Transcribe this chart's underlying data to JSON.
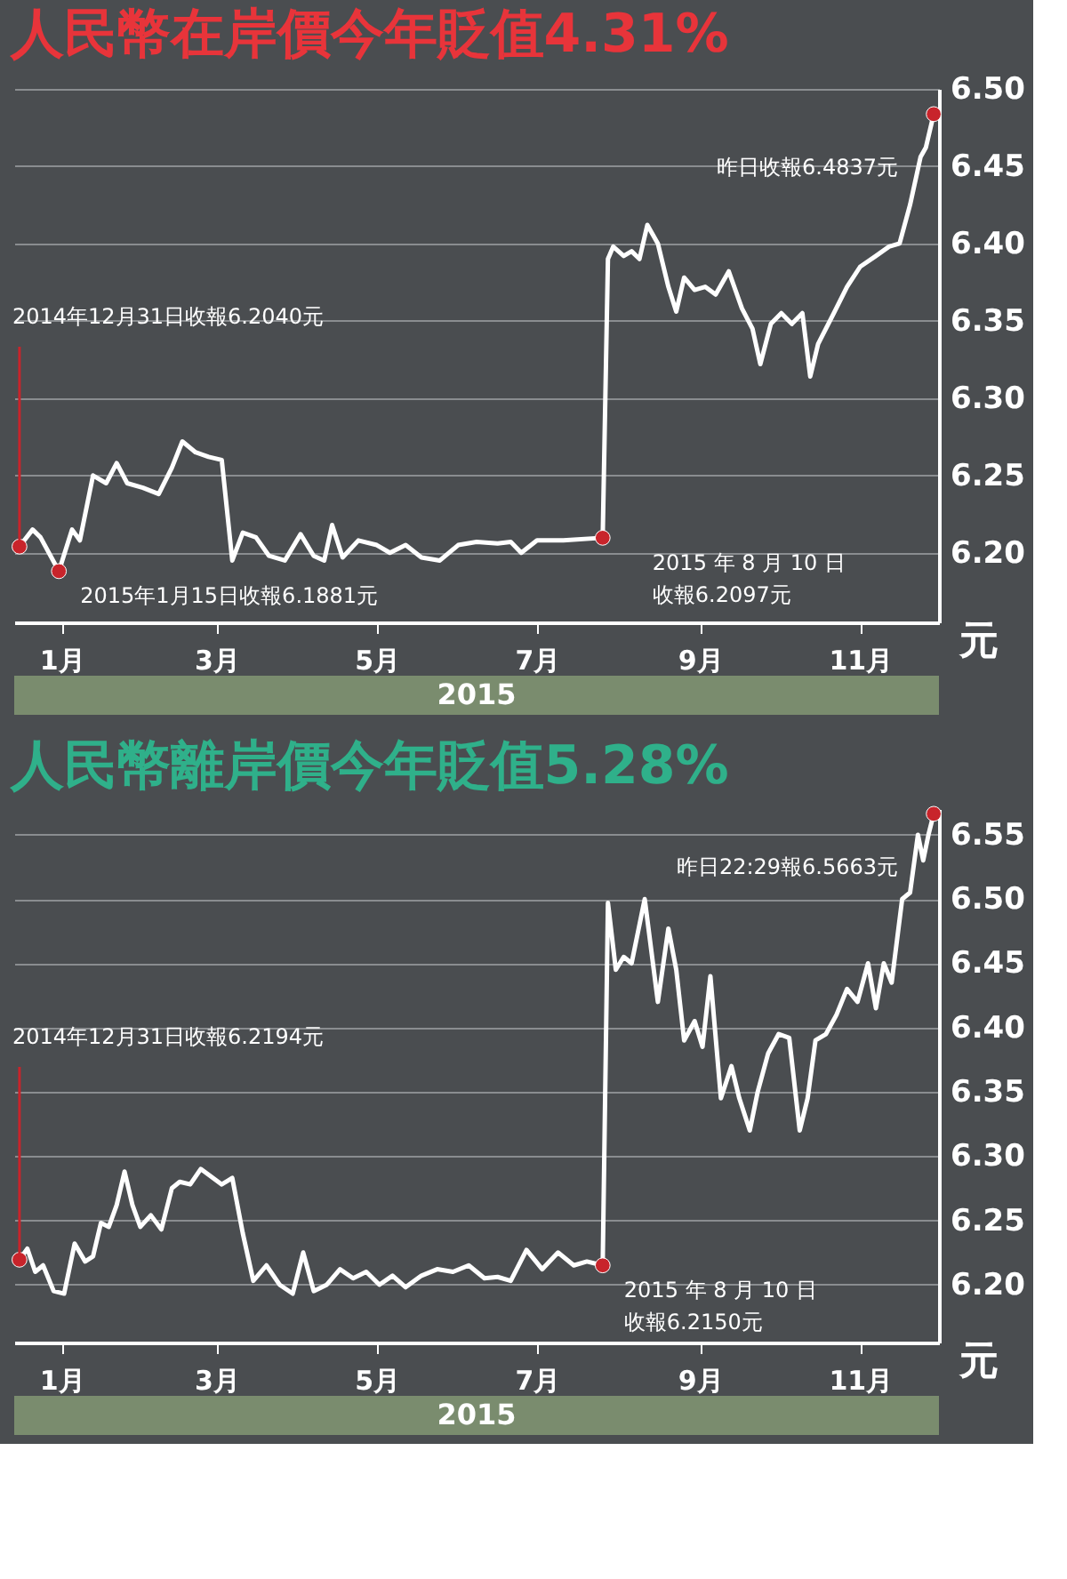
{
  "chart_data": [
    {
      "type": "line",
      "title": "人民幣在岸價今年貶值4.31%",
      "xlabel": "2015",
      "ylabel": "元",
      "color": "#ffffff",
      "line_style": "solid",
      "marker": "none",
      "grid": "y",
      "legend": false,
      "xlim": [
        "2014-12-29",
        "2015-12-16"
      ],
      "ylim": [
        6.155,
        6.5
      ],
      "xticks": [
        {
          "value": "2015-01-16",
          "label": "1月"
        },
        {
          "value": "2015-03-16",
          "label": "3月"
        },
        {
          "value": "2015-05-16",
          "label": "5月"
        },
        {
          "value": "2015-07-16",
          "label": "7月"
        },
        {
          "value": "2015-09-16",
          "label": "9月"
        },
        {
          "value": "2015-11-16",
          "label": "11月"
        }
      ],
      "yticks": [
        {
          "value": 6.2,
          "label": "6.20"
        },
        {
          "value": 6.25,
          "label": "6.25"
        },
        {
          "value": 6.3,
          "label": "6.30"
        },
        {
          "value": 6.35,
          "label": "6.35"
        },
        {
          "value": 6.4,
          "label": "6.40"
        },
        {
          "value": 6.45,
          "label": "6.45"
        },
        {
          "value": 6.5,
          "label": "6.50"
        }
      ],
      "x": [
        "2014-12-31",
        "2015-01-05",
        "2015-01-08",
        "2015-01-15",
        "2015-01-20",
        "2015-01-23",
        "2015-01-28",
        "2015-02-02",
        "2015-02-06",
        "2015-02-10",
        "2015-02-16",
        "2015-02-22",
        "2015-02-27",
        "2015-03-03",
        "2015-03-08",
        "2015-03-13",
        "2015-03-18",
        "2015-03-22",
        "2015-03-26",
        "2015-03-31",
        "2015-04-05",
        "2015-04-11",
        "2015-04-17",
        "2015-04-22",
        "2015-04-26",
        "2015-04-29",
        "2015-05-03",
        "2015-05-09",
        "2015-05-16",
        "2015-05-21",
        "2015-05-27",
        "2015-06-02",
        "2015-06-09",
        "2015-06-16",
        "2015-06-23",
        "2015-07-01",
        "2015-07-06",
        "2015-07-10",
        "2015-07-16",
        "2015-07-26",
        "2015-08-10",
        "2015-08-12",
        "2015-08-14",
        "2015-08-18",
        "2015-08-21",
        "2015-08-24",
        "2015-08-27",
        "2015-08-31",
        "2015-09-04",
        "2015-09-07",
        "2015-09-10",
        "2015-09-14",
        "2015-09-18",
        "2015-09-22",
        "2015-09-27",
        "2015-10-02",
        "2015-10-06",
        "2015-10-09",
        "2015-10-13",
        "2015-10-17",
        "2015-10-21",
        "2015-10-25",
        "2015-10-28",
        "2015-10-31",
        "2015-11-06",
        "2015-11-11",
        "2015-11-16",
        "2015-11-22",
        "2015-11-27",
        "2015-12-01",
        "2015-12-05",
        "2015-12-09",
        "2015-12-11",
        "2015-12-14"
      ],
      "values": [
        6.204,
        6.215,
        6.21,
        6.1881,
        6.215,
        6.208,
        6.25,
        6.245,
        6.258,
        6.245,
        6.242,
        6.238,
        6.255,
        6.272,
        6.265,
        6.262,
        6.26,
        6.195,
        6.213,
        6.21,
        6.198,
        6.195,
        6.212,
        6.198,
        6.195,
        6.218,
        6.197,
        6.208,
        6.205,
        6.2,
        6.205,
        6.197,
        6.195,
        6.205,
        6.207,
        6.206,
        6.207,
        6.2,
        6.208,
        6.208,
        6.2097,
        6.39,
        6.398,
        6.392,
        6.395,
        6.39,
        6.412,
        6.4,
        6.372,
        6.356,
        6.378,
        6.37,
        6.372,
        6.367,
        6.382,
        6.358,
        6.345,
        6.322,
        6.348,
        6.355,
        6.348,
        6.355,
        6.314,
        6.335,
        6.355,
        6.372,
        6.385,
        6.392,
        6.398,
        6.4,
        6.425,
        6.456,
        6.462,
        6.4837
      ],
      "annotations": [
        {
          "text": "2014年12月31日收報6.2040元",
          "x": "2014-12-31",
          "y": 6.204
        },
        {
          "text": "2015年1月15日收報6.1881元",
          "x": "2015-01-15",
          "y": 6.1881
        },
        {
          "text": "2015 年 8 月 10 日收報6.2097元",
          "x": "2015-08-10",
          "y": 6.2097
        },
        {
          "text": "昨日收報6.4837元",
          "x": "2015-12-14",
          "y": 6.4837
        }
      ]
    },
    {
      "type": "line",
      "title": "人民幣離岸價今年貶值5.28%",
      "xlabel": "2015",
      "ylabel": "元",
      "color": "#ffffff",
      "line_style": "solid",
      "marker": "none",
      "grid": "y",
      "legend": false,
      "xlim": [
        "2014-12-29",
        "2015-12-16"
      ],
      "ylim": [
        6.155,
        6.57
      ],
      "xticks": [
        {
          "value": "2015-01-16",
          "label": "1月"
        },
        {
          "value": "2015-03-16",
          "label": "3月"
        },
        {
          "value": "2015-05-16",
          "label": "5月"
        },
        {
          "value": "2015-07-16",
          "label": "7月"
        },
        {
          "value": "2015-09-16",
          "label": "9月"
        },
        {
          "value": "2015-11-16",
          "label": "11月"
        }
      ],
      "yticks": [
        {
          "value": 6.2,
          "label": "6.20"
        },
        {
          "value": 6.25,
          "label": "6.25"
        },
        {
          "value": 6.3,
          "label": "6.30"
        },
        {
          "value": 6.35,
          "label": "6.35"
        },
        {
          "value": 6.4,
          "label": "6.40"
        },
        {
          "value": 6.45,
          "label": "6.45"
        },
        {
          "value": 6.5,
          "label": "6.50"
        },
        {
          "value": 6.55,
          "label": "6.55"
        }
      ],
      "x": [
        "2014-12-31",
        "2015-01-03",
        "2015-01-06",
        "2015-01-09",
        "2015-01-13",
        "2015-01-17",
        "2015-01-21",
        "2015-01-25",
        "2015-01-28",
        "2015-01-31",
        "2015-02-03",
        "2015-02-06",
        "2015-02-09",
        "2015-02-12",
        "2015-02-15",
        "2015-02-19",
        "2015-02-23",
        "2015-02-27",
        "2015-03-02",
        "2015-03-06",
        "2015-03-10",
        "2015-03-14",
        "2015-03-18",
        "2015-03-22",
        "2015-03-26",
        "2015-03-30",
        "2015-04-04",
        "2015-04-09",
        "2015-04-14",
        "2015-04-18",
        "2015-04-22",
        "2015-04-27",
        "2015-05-02",
        "2015-05-07",
        "2015-05-12",
        "2015-05-17",
        "2015-05-22",
        "2015-05-27",
        "2015-06-02",
        "2015-06-08",
        "2015-06-14",
        "2015-06-20",
        "2015-06-26",
        "2015-07-01",
        "2015-07-06",
        "2015-07-12",
        "2015-07-18",
        "2015-07-24",
        "2015-07-30",
        "2015-08-04",
        "2015-08-10",
        "2015-08-12",
        "2015-08-15",
        "2015-08-18",
        "2015-08-21",
        "2015-08-26",
        "2015-08-31",
        "2015-09-04",
        "2015-09-07",
        "2015-09-10",
        "2015-09-14",
        "2015-09-17",
        "2015-09-20",
        "2015-09-24",
        "2015-09-28",
        "2015-10-01",
        "2015-10-05",
        "2015-10-08",
        "2015-10-12",
        "2015-10-16",
        "2015-10-20",
        "2015-10-24",
        "2015-10-27",
        "2015-10-30",
        "2015-11-03",
        "2015-11-07",
        "2015-11-11",
        "2015-11-15",
        "2015-11-19",
        "2015-11-22",
        "2015-11-25",
        "2015-11-28",
        "2015-12-02",
        "2015-12-05",
        "2015-12-08",
        "2015-12-10",
        "2015-12-12",
        "2015-12-14"
      ],
      "values": [
        6.2194,
        6.228,
        6.21,
        6.215,
        6.195,
        6.193,
        6.232,
        6.218,
        6.222,
        6.248,
        6.245,
        6.262,
        6.288,
        6.262,
        6.245,
        6.254,
        6.243,
        6.275,
        6.28,
        6.278,
        6.29,
        6.284,
        6.278,
        6.283,
        6.24,
        6.203,
        6.215,
        6.2,
        6.193,
        6.225,
        6.195,
        6.2,
        6.212,
        6.205,
        6.21,
        6.2,
        6.207,
        6.198,
        6.207,
        6.212,
        6.21,
        6.215,
        6.205,
        6.206,
        6.203,
        6.227,
        6.212,
        6.225,
        6.215,
        6.218,
        6.215,
        6.497,
        6.445,
        6.455,
        6.45,
        6.5,
        6.42,
        6.477,
        6.445,
        6.39,
        6.405,
        6.385,
        6.44,
        6.345,
        6.37,
        6.345,
        6.32,
        6.35,
        6.38,
        6.395,
        6.392,
        6.32,
        6.345,
        6.39,
        6.395,
        6.41,
        6.43,
        6.42,
        6.45,
        6.415,
        6.45,
        6.435,
        6.5,
        6.505,
        6.55,
        6.53,
        6.55,
        6.5663
      ],
      "annotations": [
        {
          "text": "2014年12月31日收報6.2194元",
          "x": "2014-12-31",
          "y": 6.2194
        },
        {
          "text": "2015 年 8 月 10 日收報6.2150元",
          "x": "2015-08-10",
          "y": 6.215
        },
        {
          "text": "昨日22:29報6.5663元",
          "x": "2015-12-14",
          "y": 6.5663
        }
      ]
    }
  ]
}
